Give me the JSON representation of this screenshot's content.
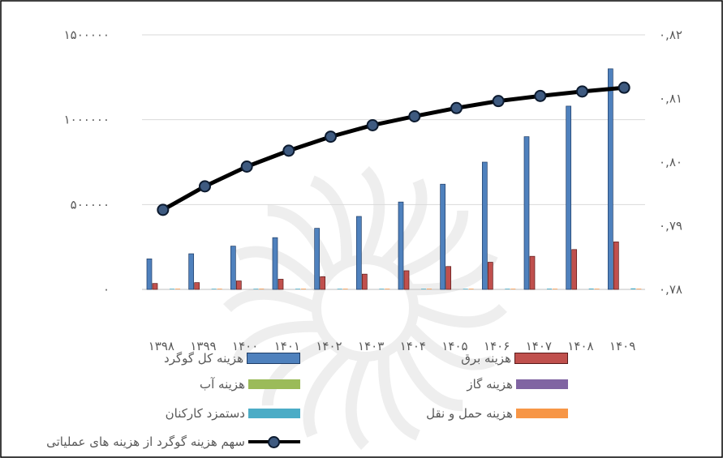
{
  "chart_data": {
    "type": "bar",
    "categories": [
      "۱۳۹۸",
      "۱۳۹۹",
      "۱۴۰۰",
      "۱۴۰۱",
      "۱۴۰۲",
      "۱۴۰۳",
      "۱۴۰۴",
      "۱۴۰۵",
      "۱۴۰۶",
      "۱۴۰۷",
      "۱۴۰۸",
      "۱۴۰۹"
    ],
    "series": [
      {
        "name": "هزینه کل گوگرد",
        "axis": "left",
        "type": "bar",
        "color": "#4f81bd",
        "values": [
          180000,
          210000,
          255000,
          305000,
          360000,
          430000,
          515000,
          620000,
          750000,
          900000,
          1080000,
          1300000
        ]
      },
      {
        "name": "هزینه برق",
        "axis": "left",
        "type": "bar",
        "color": "#c0504d",
        "values": [
          35000,
          40000,
          50000,
          60000,
          75000,
          90000,
          110000,
          135000,
          160000,
          195000,
          235000,
          280000
        ]
      },
      {
        "name": "هزینه آب",
        "axis": "left",
        "type": "bar",
        "color": "#9bbb59",
        "values": [
          0,
          0,
          0,
          0,
          0,
          0,
          0,
          0,
          0,
          0,
          0,
          0
        ]
      },
      {
        "name": "هزینه گاز",
        "axis": "left",
        "type": "bar",
        "color": "#8064a2",
        "values": [
          0,
          0,
          0,
          0,
          0,
          0,
          0,
          0,
          0,
          0,
          0,
          0
        ]
      },
      {
        "name": "دستمزد کارکنان",
        "axis": "left",
        "type": "bar",
        "color": "#4bacc6",
        "values": [
          2000,
          2000,
          2500,
          2500,
          3000,
          3000,
          3500,
          3500,
          4000,
          4500,
          5000,
          6000
        ]
      },
      {
        "name": "هزینه حمل و نقل",
        "axis": "left",
        "type": "bar",
        "color": "#f79646",
        "values": [
          1000,
          1000,
          1200,
          1200,
          1500,
          1500,
          1800,
          2000,
          2200,
          2500,
          3000,
          3500
        ]
      },
      {
        "name": "سهم هزینه گوگرد از هزینه های عملیاتی",
        "axis": "right",
        "type": "line",
        "color": "#000000",
        "marker_color": "#3e5a80",
        "values": [
          0.7925,
          0.7962,
          0.7993,
          0.8018,
          0.804,
          0.8058,
          0.8072,
          0.8085,
          0.8096,
          0.8104,
          0.8111,
          0.8117
        ]
      }
    ],
    "ylim": [
      0,
      1500000
    ],
    "y2lim": [
      0.78,
      0.82
    ],
    "yticks": [
      "۰",
      "۵۰۰۰۰۰",
      "۱۰۰۰۰۰۰",
      "۱۵۰۰۰۰۰"
    ],
    "y2ticks": [
      "۰,۷۸",
      "۰,۷۹",
      "۰,۸۰",
      "۰,۸۱",
      "۰,۸۲"
    ],
    "grid": true,
    "legend_position": "bottom",
    "title": "",
    "xlabel": "",
    "ylabel": ""
  }
}
